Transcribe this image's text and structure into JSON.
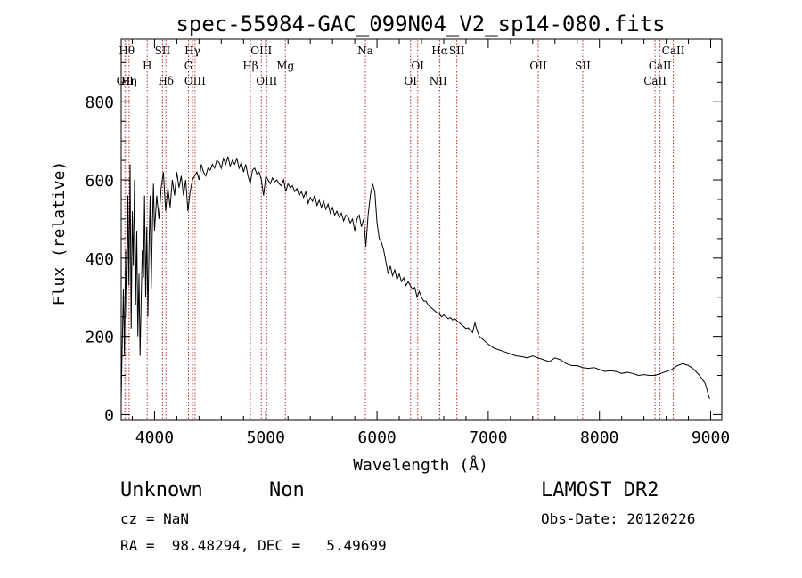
{
  "chart_data": {
    "type": "line",
    "title": "spec-55984-GAC_099N04_V2_sp14-080.fits",
    "xlabel": "Wavelength (Å)",
    "ylabel": "Flux (relative)",
    "xlim": [
      3700,
      9100
    ],
    "ylim": [
      -15,
      960
    ],
    "x_ticks": [
      4000,
      5000,
      6000,
      7000,
      8000,
      9000
    ],
    "y_ticks": [
      0,
      200,
      400,
      600,
      800
    ],
    "series": [
      {
        "values": [
          [
            3700,
            40
          ],
          [
            3710,
            180
          ],
          [
            3720,
            320
          ],
          [
            3730,
            150
          ],
          [
            3740,
            420
          ],
          [
            3750,
            250
          ],
          [
            3760,
            560
          ],
          [
            3770,
            330
          ],
          [
            3780,
            640
          ],
          [
            3790,
            220
          ],
          [
            3800,
            520
          ],
          [
            3810,
            380
          ],
          [
            3820,
            600
          ],
          [
            3830,
            280
          ],
          [
            3840,
            470
          ],
          [
            3850,
            200
          ],
          [
            3860,
            360
          ],
          [
            3870,
            150
          ],
          [
            3880,
            300
          ],
          [
            3890,
            420
          ],
          [
            3900,
            350
          ],
          [
            3910,
            560
          ],
          [
            3920,
            300
          ],
          [
            3930,
            480
          ],
          [
            3940,
            250
          ],
          [
            3950,
            420
          ],
          [
            3960,
            560
          ],
          [
            3970,
            320
          ],
          [
            3980,
            470
          ],
          [
            3990,
            590
          ],
          [
            4000,
            470
          ],
          [
            4020,
            560
          ],
          [
            4040,
            500
          ],
          [
            4060,
            580
          ],
          [
            4080,
            620
          ],
          [
            4100,
            520
          ],
          [
            4120,
            580
          ],
          [
            4140,
            530
          ],
          [
            4160,
            600
          ],
          [
            4180,
            560
          ],
          [
            4200,
            620
          ],
          [
            4220,
            580
          ],
          [
            4240,
            610
          ],
          [
            4260,
            560
          ],
          [
            4280,
            600
          ],
          [
            4300,
            520
          ],
          [
            4320,
            570
          ],
          [
            4340,
            600
          ],
          [
            4360,
            610
          ],
          [
            4380,
            620
          ],
          [
            4400,
            600
          ],
          [
            4420,
            640
          ],
          [
            4440,
            620
          ],
          [
            4460,
            610
          ],
          [
            4480,
            630
          ],
          [
            4500,
            625
          ],
          [
            4520,
            640
          ],
          [
            4540,
            630
          ],
          [
            4560,
            650
          ],
          [
            4580,
            645
          ],
          [
            4600,
            630
          ],
          [
            4620,
            655
          ],
          [
            4640,
            640
          ],
          [
            4660,
            660
          ],
          [
            4680,
            635
          ],
          [
            4700,
            650
          ],
          [
            4720,
            640
          ],
          [
            4740,
            655
          ],
          [
            4760,
            630
          ],
          [
            4780,
            645
          ],
          [
            4800,
            620
          ],
          [
            4820,
            640
          ],
          [
            4840,
            610
          ],
          [
            4860,
            590
          ],
          [
            4880,
            625
          ],
          [
            4900,
            630
          ],
          [
            4920,
            615
          ],
          [
            4940,
            620
          ],
          [
            4960,
            600
          ],
          [
            4980,
            560
          ],
          [
            5000,
            610
          ],
          [
            5020,
            600
          ],
          [
            5040,
            590
          ],
          [
            5060,
            605
          ],
          [
            5080,
            595
          ],
          [
            5100,
            600
          ],
          [
            5120,
            590
          ],
          [
            5140,
            585
          ],
          [
            5160,
            600
          ],
          [
            5180,
            570
          ],
          [
            5200,
            590
          ],
          [
            5220,
            580
          ],
          [
            5240,
            585
          ],
          [
            5260,
            570
          ],
          [
            5280,
            578
          ],
          [
            5300,
            560
          ],
          [
            5320,
            570
          ],
          [
            5340,
            555
          ],
          [
            5360,
            570
          ],
          [
            5380,
            540
          ],
          [
            5400,
            555
          ],
          [
            5420,
            545
          ],
          [
            5440,
            560
          ],
          [
            5460,
            535
          ],
          [
            5480,
            548
          ],
          [
            5500,
            530
          ],
          [
            5520,
            545
          ],
          [
            5540,
            525
          ],
          [
            5560,
            538
          ],
          [
            5580,
            515
          ],
          [
            5600,
            530
          ],
          [
            5620,
            510
          ],
          [
            5640,
            520
          ],
          [
            5660,
            505
          ],
          [
            5680,
            515
          ],
          [
            5700,
            495
          ],
          [
            5720,
            510
          ],
          [
            5740,
            505
          ],
          [
            5760,
            490
          ],
          [
            5780,
            500
          ],
          [
            5800,
            470
          ],
          [
            5820,
            500
          ],
          [
            5840,
            510
          ],
          [
            5860,
            480
          ],
          [
            5880,
            500
          ],
          [
            5900,
            430
          ],
          [
            5920,
            510
          ],
          [
            5940,
            560
          ],
          [
            5960,
            590
          ],
          [
            5980,
            570
          ],
          [
            6000,
            490
          ],
          [
            6020,
            450
          ],
          [
            6040,
            440
          ],
          [
            6060,
            420
          ],
          [
            6080,
            390
          ],
          [
            6100,
            360
          ],
          [
            6120,
            380
          ],
          [
            6140,
            355
          ],
          [
            6160,
            370
          ],
          [
            6180,
            345
          ],
          [
            6200,
            360
          ],
          [
            6220,
            340
          ],
          [
            6240,
            350
          ],
          [
            6260,
            330
          ],
          [
            6280,
            340
          ],
          [
            6300,
            330
          ],
          [
            6320,
            320
          ],
          [
            6340,
            325
          ],
          [
            6360,
            300
          ],
          [
            6380,
            315
          ],
          [
            6400,
            300
          ],
          [
            6420,
            290
          ],
          [
            6440,
            290
          ],
          [
            6460,
            280
          ],
          [
            6480,
            275
          ],
          [
            6500,
            270
          ],
          [
            6520,
            265
          ],
          [
            6540,
            260
          ],
          [
            6560,
            258
          ],
          [
            6580,
            250
          ],
          [
            6600,
            255
          ],
          [
            6620,
            250
          ],
          [
            6640,
            245
          ],
          [
            6660,
            248
          ],
          [
            6680,
            242
          ],
          [
            6700,
            245
          ],
          [
            6720,
            240
          ],
          [
            6740,
            235
          ],
          [
            6760,
            230
          ],
          [
            6780,
            225
          ],
          [
            6800,
            220
          ],
          [
            6820,
            222
          ],
          [
            6840,
            215
          ],
          [
            6860,
            210
          ],
          [
            6880,
            235
          ],
          [
            6900,
            215
          ],
          [
            6920,
            200
          ],
          [
            6940,
            195
          ],
          [
            6960,
            190
          ],
          [
            6980,
            185
          ],
          [
            7000,
            180
          ],
          [
            7050,
            170
          ],
          [
            7100,
            165
          ],
          [
            7150,
            160
          ],
          [
            7200,
            155
          ],
          [
            7250,
            150
          ],
          [
            7300,
            148
          ],
          [
            7350,
            145
          ],
          [
            7400,
            150
          ],
          [
            7450,
            145
          ],
          [
            7500,
            140
          ],
          [
            7550,
            135
          ],
          [
            7600,
            145
          ],
          [
            7650,
            140
          ],
          [
            7700,
            130
          ],
          [
            7750,
            125
          ],
          [
            7800,
            125
          ],
          [
            7850,
            120
          ],
          [
            7900,
            118
          ],
          [
            7950,
            120
          ],
          [
            8000,
            115
          ],
          [
            8050,
            110
          ],
          [
            8100,
            112
          ],
          [
            8150,
            110
          ],
          [
            8200,
            105
          ],
          [
            8250,
            108
          ],
          [
            8300,
            105
          ],
          [
            8350,
            100
          ],
          [
            8400,
            102
          ],
          [
            8450,
            100
          ],
          [
            8500,
            100
          ],
          [
            8550,
            105
          ],
          [
            8600,
            110
          ],
          [
            8650,
            115
          ],
          [
            8700,
            125
          ],
          [
            8750,
            130
          ],
          [
            8800,
            125
          ],
          [
            8850,
            115
          ],
          [
            8900,
            100
          ],
          [
            8950,
            80
          ],
          [
            8990,
            40
          ]
        ]
      }
    ],
    "lines": [
      {
        "wl": 3734,
        "label": "OII",
        "row": 3
      },
      {
        "wl": 3750,
        "label": "Hθ",
        "row": 1
      },
      {
        "wl": 3771,
        "label": "Hη",
        "row": 3
      },
      {
        "wl": 3934,
        "label": "H",
        "row": 2
      },
      {
        "wl": 4072,
        "label": "SII",
        "row": 1
      },
      {
        "wl": 4102,
        "label": "Hδ",
        "row": 3
      },
      {
        "wl": 4305,
        "label": "G",
        "row": 2
      },
      {
        "wl": 4341,
        "label": "Hγ",
        "row": 1
      },
      {
        "wl": 4364,
        "label": "OIII",
        "row": 3
      },
      {
        "wl": 4862,
        "label": "Hβ",
        "row": 2
      },
      {
        "wl": 4960,
        "label": "OIII",
        "row": 1
      },
      {
        "wl": 5008,
        "label": "OIII",
        "row": 3
      },
      {
        "wl": 5176,
        "label": "Mg",
        "row": 2
      },
      {
        "wl": 5895,
        "label": "Na",
        "row": 1
      },
      {
        "wl": 6302,
        "label": "OI",
        "row": 3
      },
      {
        "wl": 6366,
        "label": "OI",
        "row": 2
      },
      {
        "wl": 6550,
        "label": "NII",
        "row": 3
      },
      {
        "wl": 6565,
        "label": "Hα",
        "row": 1
      },
      {
        "wl": 6718,
        "label": "SII",
        "row": 1
      },
      {
        "wl": 7450,
        "label": "OII",
        "row": 2
      },
      {
        "wl": 7850,
        "label": "SII",
        "row": 2
      },
      {
        "wl": 8500,
        "label": "CaII",
        "row": 3
      },
      {
        "wl": 8544,
        "label": "CaII",
        "row": 2
      },
      {
        "wl": 8664,
        "label": "CaII",
        "row": 1
      }
    ],
    "line_color": "#b03030",
    "spectrum_color": "#000000"
  },
  "footer": {
    "object_class": "Unknown",
    "subclass": "Non",
    "survey": "LAMOST DR2",
    "cz": "cz = NaN",
    "obs_date": "Obs-Date: 20120226",
    "coords": "RA =  98.48294, DEC =   5.49699"
  }
}
